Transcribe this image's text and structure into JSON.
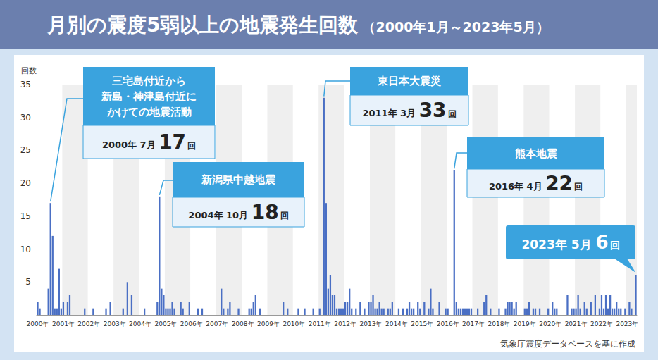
{
  "chart_data": {
    "type": "bar",
    "title": "月別の震度5弱以上の地震発生回数",
    "subtitle": "（2000年1月～2023年5月）",
    "y_label": "回数",
    "source": "気象庁震度データベースを基に作成",
    "color": "#4a6fc4",
    "grid": false,
    "data_labels": false,
    "ylim": [
      0,
      35
    ],
    "yticks": [
      5,
      10,
      15,
      20,
      25,
      30,
      35
    ],
    "categories": [
      "2000年",
      null,
      null,
      null,
      null,
      null,
      null,
      null,
      null,
      null,
      null,
      null,
      "2001年",
      null,
      null,
      null,
      null,
      null,
      null,
      null,
      null,
      null,
      null,
      null,
      "2002年",
      null,
      null,
      null,
      null,
      null,
      null,
      null,
      null,
      null,
      null,
      null,
      "2003年",
      null,
      null,
      null,
      null,
      null,
      null,
      null,
      null,
      null,
      null,
      null,
      "2004年",
      null,
      null,
      null,
      null,
      null,
      null,
      null,
      null,
      null,
      null,
      null,
      "2005年",
      null,
      null,
      null,
      null,
      null,
      null,
      null,
      null,
      null,
      null,
      null,
      "2006年",
      null,
      null,
      null,
      null,
      null,
      null,
      null,
      null,
      null,
      null,
      null,
      "2007年",
      null,
      null,
      null,
      null,
      null,
      null,
      null,
      null,
      null,
      null,
      null,
      "2008年",
      null,
      null,
      null,
      null,
      null,
      null,
      null,
      null,
      null,
      null,
      null,
      "2009年",
      null,
      null,
      null,
      null,
      null,
      null,
      null,
      null,
      null,
      null,
      null,
      "2010年",
      null,
      null,
      null,
      null,
      null,
      null,
      null,
      null,
      null,
      null,
      null,
      "2011年",
      null,
      null,
      null,
      null,
      null,
      null,
      null,
      null,
      null,
      null,
      null,
      "2012年",
      null,
      null,
      null,
      null,
      null,
      null,
      null,
      null,
      null,
      null,
      null,
      "2013年",
      null,
      null,
      null,
      null,
      null,
      null,
      null,
      null,
      null,
      null,
      null,
      "2014年",
      null,
      null,
      null,
      null,
      null,
      null,
      null,
      null,
      null,
      null,
      null,
      "2015年",
      null,
      null,
      null,
      null,
      null,
      null,
      null,
      null,
      null,
      null,
      null,
      "2016年",
      null,
      null,
      null,
      null,
      null,
      null,
      null,
      null,
      null,
      null,
      null,
      "2017年",
      null,
      null,
      null,
      null,
      null,
      null,
      null,
      null,
      null,
      null,
      null,
      "2018年",
      null,
      null,
      null,
      null,
      null,
      null,
      null,
      null,
      null,
      null,
      null,
      "2019年",
      null,
      null,
      null,
      null,
      null,
      null,
      null,
      null,
      null,
      null,
      null,
      "2020年",
      null,
      null,
      null,
      null,
      null,
      null,
      null,
      null,
      null,
      null,
      null,
      "2021年",
      null,
      null,
      null,
      null,
      null,
      null,
      null,
      null,
      null,
      null,
      null,
      "2022年",
      null,
      null,
      null,
      null,
      null,
      null,
      null,
      null,
      null,
      null,
      null,
      "2023年",
      null,
      null,
      null,
      null
    ],
    "values": [
      2,
      1,
      0,
      0,
      0,
      4,
      17,
      12,
      1,
      1,
      7,
      1,
      2,
      0,
      2,
      3,
      0,
      0,
      0,
      0,
      0,
      0,
      1,
      0,
      0,
      0,
      1,
      0,
      0,
      0,
      0,
      0,
      1,
      0,
      2,
      0,
      0,
      0,
      0,
      0,
      1,
      0,
      5,
      0,
      3,
      0,
      0,
      0,
      0,
      0,
      1,
      0,
      0,
      0,
      0,
      0,
      2,
      18,
      4,
      3,
      1,
      1,
      1,
      2,
      1,
      0,
      0,
      2,
      1,
      0,
      0,
      2,
      0,
      0,
      0,
      1,
      0,
      1,
      0,
      0,
      0,
      0,
      0,
      0,
      0,
      0,
      4,
      1,
      0,
      1,
      2,
      0,
      0,
      0,
      1,
      0,
      0,
      0,
      0,
      1,
      1,
      2,
      3,
      0,
      1,
      0,
      0,
      0,
      0,
      0,
      0,
      0,
      0,
      0,
      0,
      2,
      0,
      1,
      0,
      0,
      0,
      0,
      1,
      0,
      0,
      1,
      0,
      0,
      0,
      1,
      0,
      0,
      1,
      0,
      33,
      17,
      4,
      6,
      3,
      3,
      1,
      1,
      1,
      1,
      2,
      2,
      4,
      1,
      0,
      1,
      0,
      2,
      0,
      1,
      0,
      2,
      2,
      3,
      1,
      1,
      2,
      1,
      1,
      0,
      1,
      1,
      2,
      0,
      0,
      1,
      0,
      1,
      0,
      1,
      2,
      1,
      1,
      0,
      2,
      1,
      0,
      2,
      0,
      1,
      4,
      1,
      0,
      0,
      2,
      0,
      0,
      1,
      1,
      0,
      0,
      22,
      2,
      1,
      1,
      1,
      1,
      1,
      1,
      1,
      0,
      0,
      1,
      0,
      0,
      2,
      3,
      0,
      1,
      0,
      0,
      0,
      1,
      0,
      0,
      1,
      2,
      2,
      2,
      1,
      2,
      0,
      0,
      0,
      1,
      1,
      2,
      0,
      1,
      1,
      0,
      1,
      0,
      0,
      0,
      1,
      0,
      2,
      1,
      1,
      0,
      0,
      0,
      0,
      3,
      0,
      1,
      1,
      1,
      3,
      1,
      0,
      2,
      1,
      0,
      2,
      0,
      3,
      0,
      1,
      3,
      1,
      3,
      1,
      3,
      1,
      1,
      2,
      1,
      1,
      0,
      1,
      0,
      2,
      1,
      0,
      6
    ],
    "annotations": [
      {
        "text": "三宅島付近から\n新島・神津島付近に\nかけての地震活動",
        "date": "2000年 7月",
        "value": 17,
        "unit": "回"
      },
      {
        "text": "新潟県中越地震",
        "date": "2004年 10月",
        "value": 18,
        "unit": "回"
      },
      {
        "text": "東日本大震災",
        "date": "2011年 3月",
        "value": 33,
        "unit": "回"
      },
      {
        "text": "熊本地震",
        "date": "2016年 4月",
        "value": 22,
        "unit": "回"
      },
      {
        "date": "2023年 5月",
        "value": 6,
        "unit": "回"
      }
    ]
  }
}
